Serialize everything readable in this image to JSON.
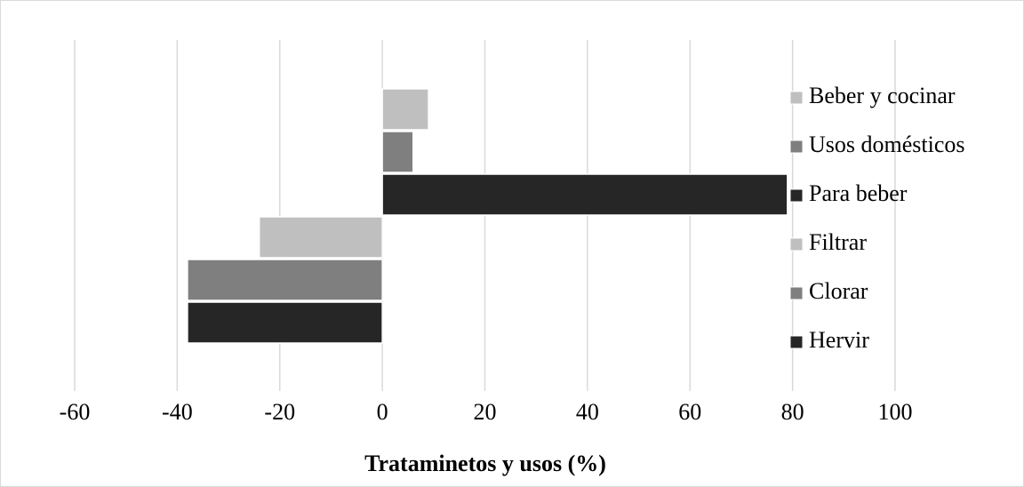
{
  "chart_data": {
    "type": "hbar",
    "xlabel": "Tratаminetos y usos (%)",
    "series": [
      {
        "name": "Beber y cocinar",
        "color": "#bfbfbf",
        "values": [
          9
        ]
      },
      {
        "name": "Usos domésticos",
        "color": "#7f7f7f",
        "values": [
          6
        ]
      },
      {
        "name": "Para beber",
        "color": "#262626",
        "values": [
          79
        ]
      },
      {
        "name": "Filtrar",
        "color": "#bfbfbf",
        "values": [
          -24
        ]
      },
      {
        "name": "Clorar",
        "color": "#7f7f7f",
        "values": [
          -38
        ]
      },
      {
        "name": "Hervir",
        "color": "#262626",
        "values": [
          -38
        ]
      }
    ],
    "xlim": [
      -60,
      100
    ],
    "xticks": [
      -60,
      -40,
      -20,
      0,
      20,
      40,
      60,
      80,
      100
    ],
    "grid": true,
    "legend": "right"
  }
}
